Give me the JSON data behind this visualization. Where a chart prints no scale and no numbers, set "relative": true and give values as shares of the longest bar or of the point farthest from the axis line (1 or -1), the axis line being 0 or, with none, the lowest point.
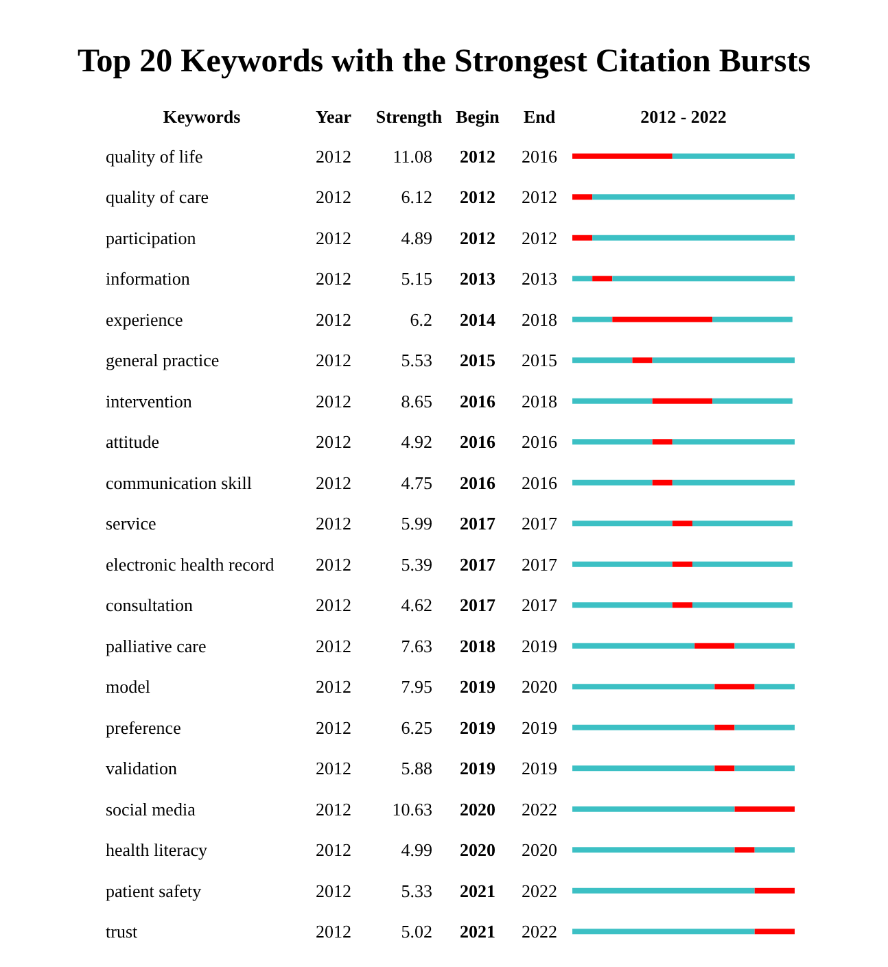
{
  "chart_data": {
    "type": "bar",
    "orientation": "horizontal",
    "stacked": true,
    "relative": true,
    "title": "Top 20 Keywords with the Strongest Citation Bursts",
    "ylabel": "Keywords",
    "xlabel": "2012 - 2022",
    "tick_labels": "y",
    "categories": [
      "quality of life",
      "quality of care",
      "participation",
      "information",
      "experience",
      "general practice",
      "intervention",
      "attitude",
      "communication skill",
      "service",
      "electronic health record",
      "consultation",
      "palliative care",
      "model",
      "preference",
      "validation",
      "social media",
      "health literacy",
      "patient safety",
      "trust"
    ],
    "series": [
      {
        "color": "#3cc0c4",
        "values": [
          0,
          0,
          0,
          0.09,
          0.18,
          0.27,
          0.36,
          0.36,
          0.36,
          0.45,
          0.45,
          0.45,
          0.55,
          0.64,
          0.64,
          0.64,
          0.73,
          0.73,
          0.82,
          0.82
        ]
      },
      {
        "color": "#ff0000",
        "values": [
          0.45,
          0.09,
          0.09,
          0.09,
          0.45,
          0.09,
          0.27,
          0.09,
          0.09,
          0.09,
          0.09,
          0.09,
          0.18,
          0.18,
          0.09,
          0.09,
          0.27,
          0.09,
          0.18,
          0.18
        ]
      },
      {
        "color": "#3cc0c4",
        "values": [
          0.55,
          0.91,
          0.91,
          0.82,
          0.36,
          0.64,
          0.36,
          0.55,
          0.55,
          0.45,
          0.45,
          0.45,
          0.27,
          0.18,
          0.27,
          0.27,
          0,
          0.18,
          0,
          0
        ]
      }
    ],
    "annotations": [
      "Year",
      "Strength",
      "Begin",
      "End",
      "2012",
      "11.08",
      "2012",
      "2016",
      "2012",
      "6.12",
      "2012",
      "2012",
      "2012",
      "4.89",
      "2012",
      "2012",
      "2012",
      "5.15",
      "2013",
      "2013",
      "2012",
      "6.2",
      "2014",
      "2018",
      "2012",
      "5.53",
      "2015",
      "2015",
      "2012",
      "8.65",
      "2016",
      "2018",
      "2012",
      "4.92",
      "2016",
      "2016",
      "2012",
      "4.75",
      "2016",
      "2016",
      "2012",
      "5.99",
      "2017",
      "2017",
      "2012",
      "5.39",
      "2017",
      "2017",
      "2012",
      "4.62",
      "2017",
      "2017",
      "2012",
      "7.63",
      "2018",
      "2019",
      "2012",
      "7.95",
      "2019",
      "2020",
      "2012",
      "6.25",
      "2019",
      "2019",
      "2012",
      "5.88",
      "2019",
      "2019",
      "2012",
      "10.63",
      "2020",
      "2022",
      "2012",
      "4.99",
      "2020",
      "2020",
      "2012",
      "5.33",
      "2021",
      "2022",
      "2012",
      "5.02",
      "2021",
      "2022"
    ]
  }
}
